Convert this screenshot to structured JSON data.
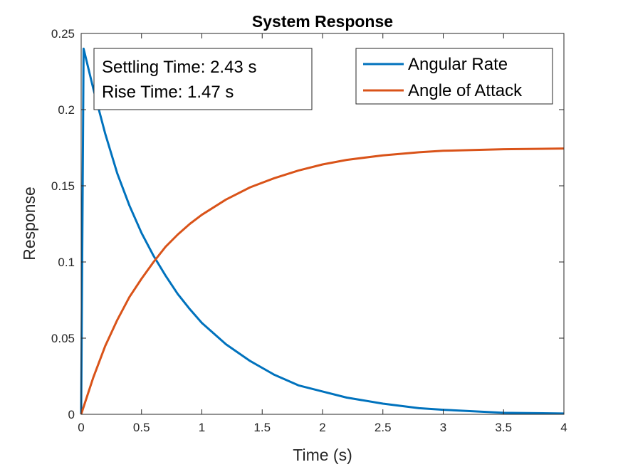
{
  "chart_data": {
    "type": "line",
    "title": "System Response",
    "xlabel": "Time (s)",
    "ylabel": "Response",
    "xlim": [
      0,
      4
    ],
    "ylim": [
      0,
      0.25
    ],
    "xticks": [
      "0",
      "0.5",
      "1",
      "1.5",
      "2",
      "2.5",
      "3",
      "3.5",
      "4"
    ],
    "yticks": [
      "0",
      "0.05",
      "0.1",
      "0.15",
      "0.2",
      "0.25"
    ],
    "grid": false,
    "legend_position": "top-right",
    "annotation": [
      "Settling Time: 2.43 s",
      "Rise Time: 1.47 s"
    ],
    "series": [
      {
        "name": "Angular Rate",
        "color": "#0072BD",
        "x": [
          0,
          0.02,
          0.1,
          0.2,
          0.3,
          0.4,
          0.5,
          0.6,
          0.7,
          0.8,
          0.9,
          1.0,
          1.2,
          1.4,
          1.6,
          1.8,
          2.0,
          2.2,
          2.5,
          2.8,
          3.0,
          3.5,
          4.0
        ],
        "y": [
          0,
          0.24,
          0.214,
          0.184,
          0.158,
          0.137,
          0.119,
          0.104,
          0.091,
          0.079,
          0.069,
          0.06,
          0.046,
          0.035,
          0.026,
          0.019,
          0.015,
          0.011,
          0.007,
          0.004,
          0.003,
          0.001,
          0.0005
        ]
      },
      {
        "name": "Angle of Attack",
        "color": "#D95319",
        "x": [
          0,
          0.1,
          0.2,
          0.3,
          0.4,
          0.5,
          0.6,
          0.7,
          0.8,
          0.9,
          1.0,
          1.2,
          1.4,
          1.6,
          1.8,
          2.0,
          2.2,
          2.5,
          2.8,
          3.0,
          3.5,
          4.0
        ],
        "y": [
          0,
          0.024,
          0.045,
          0.062,
          0.077,
          0.089,
          0.1,
          0.11,
          0.118,
          0.125,
          0.131,
          0.141,
          0.149,
          0.155,
          0.16,
          0.164,
          0.167,
          0.17,
          0.172,
          0.173,
          0.174,
          0.1745
        ]
      }
    ]
  }
}
